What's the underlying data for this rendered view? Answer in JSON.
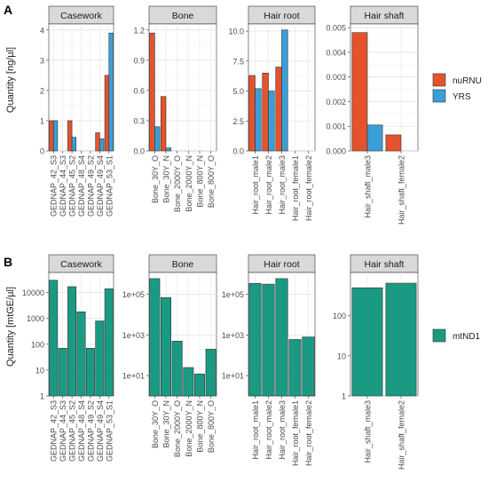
{
  "figure": {
    "panels": [
      {
        "label": "A",
        "ylabel": "Quantity [ng/µl]",
        "legend": {
          "position": "right",
          "entries": [
            {
              "name": "nuRNU",
              "color": "#e5532d"
            },
            {
              "name": "YRS",
              "color": "#3a9fd8"
            }
          ]
        }
      },
      {
        "label": "B",
        "ylabel": "Quantity [mtGE/µl]",
        "legend": {
          "position": "right",
          "entries": [
            {
              "name": "mtND1",
              "color": "#1a9a82"
            }
          ]
        }
      }
    ]
  },
  "chart_data": [
    {
      "type": "bar",
      "scale": "linear",
      "facet": "Casework",
      "categories": [
        "GEDNAP_42_S3",
        "GEDNAP_44_S3",
        "GEDNAP_45_S2",
        "GEDNAP_48_S4",
        "GEDNAP_49_S2",
        "GEDNAP_49_S4",
        "GEDNAP_53_S1"
      ],
      "series": [
        {
          "name": "nuRNU",
          "values": [
            1.0,
            0.0,
            1.0,
            0.0,
            0.0,
            0.6,
            2.5
          ]
        },
        {
          "name": "YRS",
          "values": [
            1.0,
            0.0,
            0.45,
            0.0,
            0.0,
            0.4,
            3.9
          ]
        }
      ],
      "ylim": [
        0,
        4.2
      ],
      "yticks": [
        "0",
        "1",
        "2",
        "3",
        "4"
      ],
      "grid": true
    },
    {
      "type": "bar",
      "scale": "linear",
      "facet": "Bone",
      "categories": [
        "Bone_30Y_O",
        "Bone_30Y_N",
        "Bone_2000Y_O",
        "Bone_2000Y_N",
        "Bone_800Y_N",
        "Bone_800Y_O"
      ],
      "series": [
        {
          "name": "nuRNU",
          "values": [
            1.17,
            0.54,
            0.0,
            0.0,
            0.0,
            0.0
          ]
        },
        {
          "name": "YRS",
          "values": [
            0.24,
            0.03,
            0.0,
            0.0,
            0.0,
            0.0
          ]
        }
      ],
      "ylim": [
        0,
        1.26
      ],
      "yticks": [
        "0.0",
        "0.3",
        "0.6",
        "0.9",
        "1.2"
      ],
      "grid": true
    },
    {
      "type": "bar",
      "scale": "linear",
      "facet": "Hair root",
      "categories": [
        "Hair_root_male1",
        "Hair_root_male2",
        "Hair_root_male3",
        "Hair_root_female1",
        "Hair_root_female2"
      ],
      "series": [
        {
          "name": "nuRNU",
          "values": [
            6.3,
            6.5,
            7.0,
            0.0,
            0.0
          ]
        },
        {
          "name": "YRS",
          "values": [
            5.2,
            5.0,
            10.1,
            0.0,
            0.0
          ]
        }
      ],
      "ylim": [
        0,
        10.6
      ],
      "yticks": [
        "0.0",
        "2.5",
        "5.0",
        "7.5",
        "10.0"
      ],
      "grid": true
    },
    {
      "type": "bar",
      "scale": "linear",
      "facet": "Hair shaft",
      "categories": [
        "Hair_shaft_male3",
        "Hair_shaft_female2"
      ],
      "series": [
        {
          "name": "nuRNU",
          "values": [
            0.0048,
            0.00065
          ]
        },
        {
          "name": "YRS",
          "values": [
            0.00105,
            0.0
          ]
        }
      ],
      "ylim": [
        0,
        0.00515
      ],
      "yticks": [
        "0.000",
        "0.001",
        "0.002",
        "0.003",
        "0.004",
        "0.005"
      ],
      "grid": true
    },
    {
      "type": "bar",
      "scale": "log",
      "facet": "Casework",
      "categories": [
        "GEDNAP_42_S3",
        "GEDNAP_44_S3",
        "GEDNAP_45_S2",
        "GEDNAP_48_S4",
        "GEDNAP_49_S2",
        "GEDNAP_49_S4",
        "GEDNAP_53_S1"
      ],
      "series": [
        {
          "name": "mtND1",
          "values": [
            30000,
            70,
            17000,
            1800,
            70,
            800,
            14000
          ]
        }
      ],
      "ylim": [
        1,
        60000
      ],
      "yticks": [
        "1",
        "10",
        "100",
        "1000",
        "10000"
      ],
      "grid": true
    },
    {
      "type": "bar",
      "scale": "log",
      "facet": "Bone",
      "categories": [
        "Bone_30Y_O",
        "Bone_30Y_N",
        "Bone_2000Y_O",
        "Bone_2000Y_N",
        "Bone_800Y_N",
        "Bone_800Y_O"
      ],
      "series": [
        {
          "name": "mtND1",
          "values": [
            600000,
            70000,
            500,
            25,
            12,
            200
          ]
        }
      ],
      "ylim": [
        1,
        1200000
      ],
      "yticks": [
        "1e+01",
        "1e+03",
        "1e+05"
      ],
      "grid": true
    },
    {
      "type": "bar",
      "scale": "log",
      "facet": "Hair root",
      "categories": [
        "Hair_root_male1",
        "Hair_root_male2",
        "Hair_root_male3",
        "Hair_root_female1",
        "Hair_root_female2"
      ],
      "series": [
        {
          "name": "mtND1",
          "values": [
            350000,
            320000,
            600000,
            600,
            800
          ]
        }
      ],
      "ylim": [
        1,
        1200000
      ],
      "yticks": [
        "1e+01",
        "1e+03",
        "1e+05"
      ],
      "grid": true
    },
    {
      "type": "bar",
      "scale": "log",
      "facet": "Hair shaft",
      "categories": [
        "Hair_shaft_male3",
        "Hair_shaft_female2"
      ],
      "series": [
        {
          "name": "mtND1",
          "values": [
            500,
            650
          ]
        }
      ],
      "ylim": [
        1,
        1200
      ],
      "yticks": [
        "1",
        "10",
        "100"
      ],
      "grid": true
    }
  ]
}
